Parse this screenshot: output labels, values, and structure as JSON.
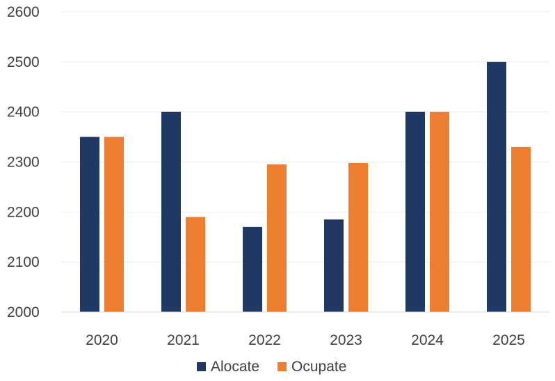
{
  "chart_data": {
    "type": "bar",
    "title": "",
    "xlabel": "",
    "ylabel": "",
    "categories": [
      "2020",
      "2021",
      "2022",
      "2023",
      "2024",
      "2025"
    ],
    "series": [
      {
        "name": "Alocate",
        "color": "#203864",
        "values": [
          2350,
          2400,
          2170,
          2185,
          2400,
          2500
        ]
      },
      {
        "name": "Ocupate",
        "color": "#ED7D31",
        "values": [
          2350,
          2190,
          2295,
          2298,
          2400,
          2330
        ]
      }
    ],
    "ylim": [
      2000,
      2600
    ],
    "yticks": [
      "2000",
      "2100",
      "2200",
      "2300",
      "2400",
      "2500",
      "2600"
    ],
    "grid": true,
    "legend": "bottom"
  }
}
